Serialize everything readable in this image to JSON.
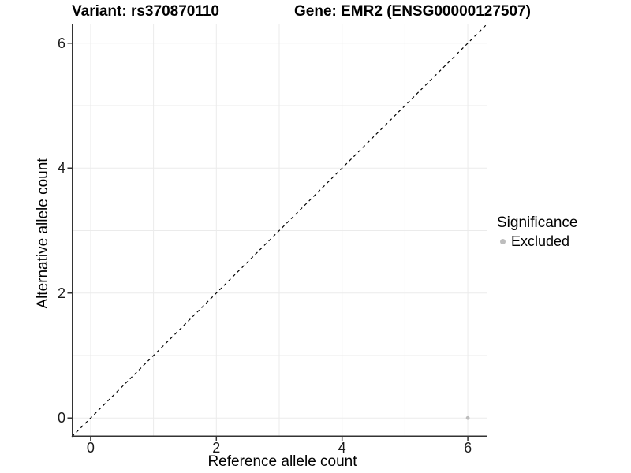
{
  "titles": {
    "variant": "Variant: rs370870110",
    "gene": "Gene: EMR2 (ENSG00000127507)"
  },
  "chart_data": {
    "type": "scatter",
    "xlabel": "Reference allele count",
    "ylabel": "Alternative allele count",
    "xlim": [
      -0.3,
      6.3
    ],
    "ylim": [
      -0.3,
      6.3
    ],
    "xticks": [
      0,
      2,
      4,
      6
    ],
    "yticks": [
      0,
      2,
      4,
      6
    ],
    "grid_positions": [
      0,
      1,
      2,
      3,
      4,
      5,
      6
    ],
    "grid": true,
    "series": [
      {
        "name": "Excluded",
        "points": [
          {
            "x": 6,
            "y": 0
          }
        ],
        "color": "#bdbdbd"
      }
    ],
    "reference_line": {
      "type": "identity",
      "style": "dashed",
      "from": [
        -0.3,
        -0.3
      ],
      "to": [
        6.3,
        6.3
      ],
      "color": "#000000"
    },
    "legend": {
      "title": "Significance",
      "position": "right",
      "items": [
        {
          "label": "Excluded",
          "color": "#bdbdbd",
          "marker": "circle"
        }
      ]
    },
    "colors": {
      "grid": "#ebebeb",
      "axis": "#333333",
      "tick_text": "#1a1a1a",
      "background": "#ffffff"
    }
  }
}
